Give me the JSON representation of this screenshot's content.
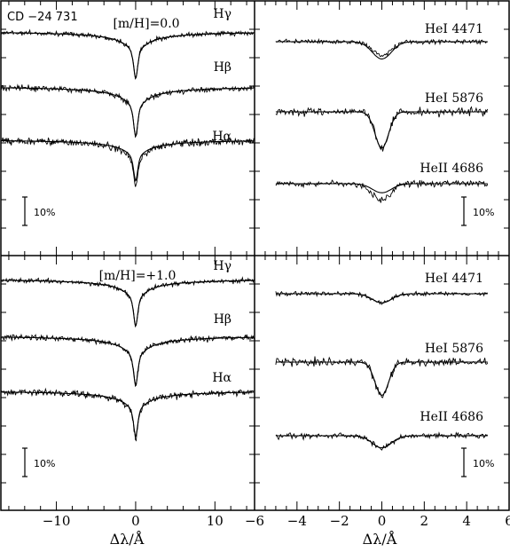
{
  "figure": {
    "star_label": "CD −24 731",
    "xlabel_left": "Δλ/Å",
    "xlabel_right": "Δλ/Å"
  },
  "axes": {
    "left": {
      "xlim": [
        -17,
        15
      ],
      "ticks": [
        -10,
        0,
        10
      ],
      "tick_labels": [
        "−10",
        "0",
        "10"
      ]
    },
    "right": {
      "xlim": [
        -6,
        6
      ],
      "ticks": [
        -6,
        -4,
        -2,
        0,
        2,
        4,
        6
      ],
      "tick_labels": [
        "−6",
        "−4",
        "−2",
        "0",
        "2",
        "4",
        "6"
      ]
    }
  },
  "chart_data": [
    {
      "type": "line",
      "panel": "top-left",
      "annotation": "[m/H]=0.0",
      "xlim": [
        -17,
        15
      ],
      "scale_bar": "10%",
      "series": [
        {
          "name": "Hγ",
          "center_depth": 0.16,
          "noise": 0.007,
          "fit_offset": 0.0
        },
        {
          "name": "Hβ",
          "center_depth": 0.17,
          "noise": 0.009,
          "fit_offset": 0.0
        },
        {
          "name": "Hα",
          "center_depth": 0.16,
          "noise": 0.011,
          "fit_offset": 0.02
        }
      ]
    },
    {
      "type": "line",
      "panel": "top-right",
      "xlim": [
        -6,
        6
      ],
      "scale_bar": "10%",
      "series": [
        {
          "name": "HeI 4471",
          "center_depth": 0.045,
          "noise": 0.008,
          "fit_offset": 0.012
        },
        {
          "name": "HeI 5876",
          "center_depth": 0.12,
          "noise": 0.012,
          "fit_offset": 0.0
        },
        {
          "name": "HeII 4686",
          "center_depth": 0.055,
          "noise": 0.01,
          "fit_offset": -0.025
        }
      ]
    },
    {
      "type": "line",
      "panel": "bottom-left",
      "annotation": "[m/H]=+1.0",
      "xlim": [
        -17,
        15
      ],
      "scale_bar": "10%",
      "series": [
        {
          "name": "Hγ",
          "center_depth": 0.16,
          "noise": 0.007,
          "fit_offset": 0.0
        },
        {
          "name": "Hβ",
          "center_depth": 0.17,
          "noise": 0.009,
          "fit_offset": 0.0
        },
        {
          "name": "Hα",
          "center_depth": 0.16,
          "noise": 0.011,
          "fit_offset": 0.005
        }
      ]
    },
    {
      "type": "line",
      "panel": "bottom-right",
      "xlim": [
        -6,
        6
      ],
      "scale_bar": "10%",
      "series": [
        {
          "name": "HeI 4471",
          "center_depth": 0.03,
          "noise": 0.007,
          "fit_offset": 0.0
        },
        {
          "name": "HeI 5876",
          "center_depth": 0.11,
          "noise": 0.012,
          "fit_offset": 0.0
        },
        {
          "name": "HeII 4686",
          "center_depth": 0.04,
          "noise": 0.008,
          "fit_offset": 0.0
        }
      ]
    }
  ]
}
